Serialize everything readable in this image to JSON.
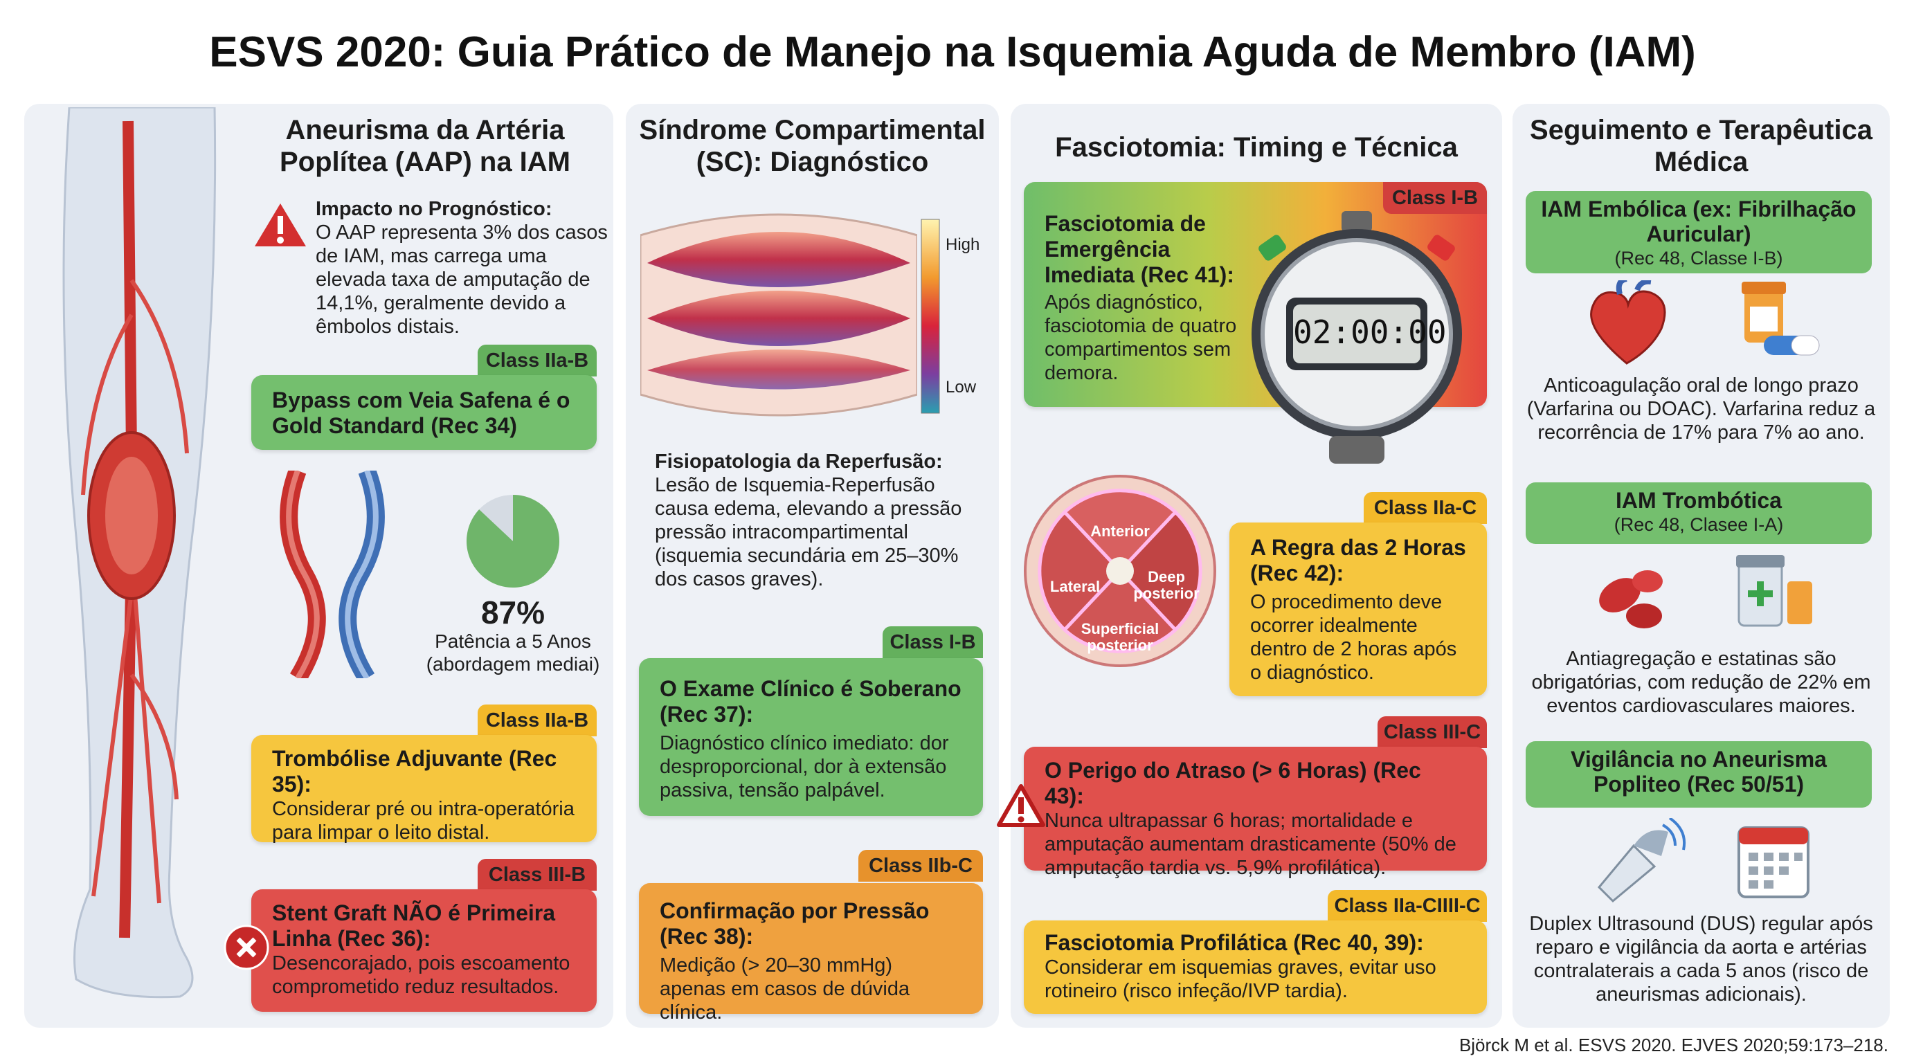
{
  "header": {
    "title": "ESVS 2020: Guia Prático de Manejo na Isquemia Aguda de Membro (IAM)"
  },
  "columns": [
    {
      "title": "Aneurisma da Artéria Poplítea (AAP) na IAM",
      "impact": {
        "heading": "Impacto no Prognóstico:",
        "text": "O AAP representa 3% dos casos de IAM, mas carrega uma elevada taxa de amputação de 14,1%, geralmente devido a êmbolos distais."
      },
      "patency": {
        "value": {
          "value": 87,
          "label": "87%"
        },
        "caption": "Patência a 5 Anos (abordagem mediai)"
      },
      "cards": [
        {
          "class": "Class IIa-B",
          "title": "Bypass com Veia Safena é o Gold Standard (Rec 34)"
        },
        {
          "class": "Class IIa-B",
          "title": "Trombólise Adjuvante (Rec 35):",
          "text": "Considerar pré ou intra-operatória para limpar o leito distal."
        },
        {
          "class": "Class III-B",
          "title": "Stent Graft NÃO é Primeira Linha (Rec 36):",
          "text": "Desencorajado, pois escoamento comprometido reduz resultados."
        }
      ]
    },
    {
      "title": "Síndrome Compartimental (SC): Diagnóstico",
      "scale": {
        "high": "High",
        "low": "Low"
      },
      "pathophysiology": {
        "heading": "Fisiopatologia da Reperfusão:",
        "text": "Lesão de Isquemia-Reperfusão causa edema, elevando a pressão pressão intracompartimental (isquemia secundária em 25–30% dos casos graves)."
      },
      "cards": [
        {
          "class": "Class I-B",
          "title": "O Exame Clínico é Soberano (Rec 37):",
          "text": "Diagnóstico clínico imediato: dor desproporcional, dor à extensão passiva, tensão palpável."
        },
        {
          "class": "Class IIb-C",
          "title": "Confirmação por Pressão (Rec 38):",
          "text": "Medição (> 20–30 mmHg) apenas em casos de dúvida clínica."
        }
      ]
    },
    {
      "title": "Fasciotomia: Timing e Técnica",
      "timer": "02:00:00",
      "compartments": [
        "Anterior",
        "Lateral",
        "Deep posterior",
        "Superficial posterior"
      ],
      "cards": [
        {
          "class": "Class I-B",
          "title": "Fasciotomia de Emergência Imediata (Rec 41):",
          "text": "Após diagnóstico, fasciotomia de quatro compartimentos sem demora."
        },
        {
          "class": "Class IIa-C",
          "title": "A Regra das 2 Horas (Rec 42):",
          "text": "O procedimento deve ocorrer idealmente dentro de 2 horas após o diagnóstico."
        },
        {
          "class": "Class III-C",
          "title": "O Perigo do Atraso (> 6 Horas) (Rec 43):",
          "text": "Nunca ultrapassar 6 horas; mortalidade e amputação aumentam drasticamente (50% de amputação tardia vs. 5,9% profilática)."
        },
        {
          "class": "Class IIa-CIIII-C",
          "title": "Fasciotomia Profilática (Rec 40, 39):",
          "text": "Considerar em isquemias graves, evitar uso rotineiro (risco infeção/IVP tardia)."
        }
      ]
    },
    {
      "title": "Seguimento e Terapêutica Médica",
      "sections": [
        {
          "title": "IAM Embólica (ex: Fibrilhação Auricular)",
          "subtitle": "(Rec 48, Classe I-B)",
          "text": "Anticoagulação oral de longo prazo (Varfarina ou DOAC). Varfarina reduz a recorrência de 17% para 7% ao ano."
        },
        {
          "title": "IAM Trombótica",
          "subtitle": "(Rec 48, Clasee I-A)",
          "text": "Antiagregação e estatinas são obrigatórias, com redução de 22% em eventos cardiovasculares maiores."
        },
        {
          "title": "Vigilância no Aneurisma Popliteo (Rec 50/51)",
          "text": "Duplex Ultrasound (DUS) regular após reparo e vigilância da aorta e artérias contralaterais a cada 5 anos (risco de aneurismas adicionais)."
        }
      ]
    }
  ],
  "footer": {
    "citation": "Björck M et al. ESVS 2020. EJVES 2020;59:173–218."
  }
}
